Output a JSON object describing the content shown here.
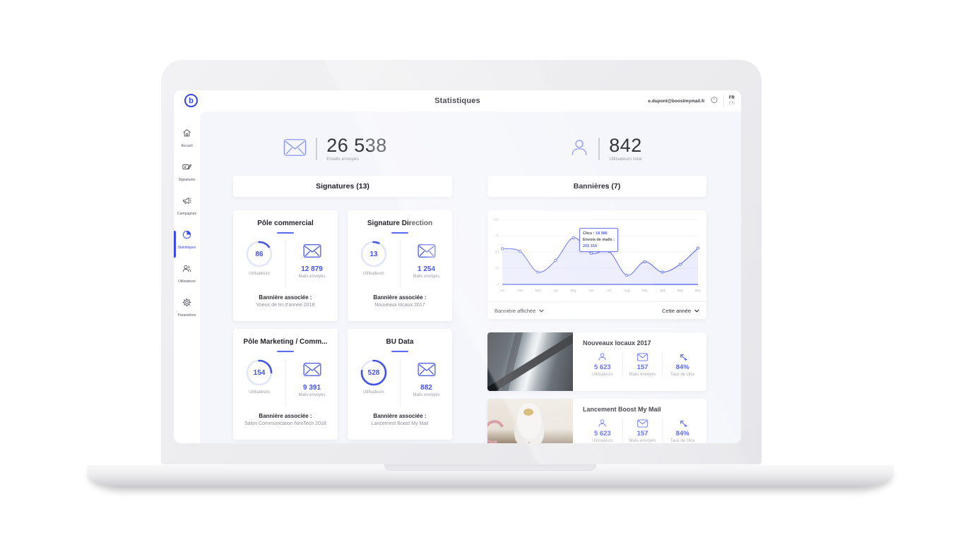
{
  "app_header": {
    "logo_letter": "b",
    "title": "Statistiques",
    "user_email": "e.dupont@boostmymail.fr",
    "languages": {
      "primary": "FR",
      "secondary": "EN"
    }
  },
  "sidebar": {
    "items": [
      {
        "label": "Accueil"
      },
      {
        "label": "Signatures"
      },
      {
        "label": "Campagnes"
      },
      {
        "label": "Statistiques",
        "active": true
      },
      {
        "label": "Utilisateurs"
      },
      {
        "label": "Paramètres"
      }
    ]
  },
  "overview": {
    "emails": {
      "value": "26 538",
      "label": "Emails envoyés"
    },
    "users": {
      "value": "842",
      "label": "Utilisateurs total"
    }
  },
  "signatures": {
    "header": "Signatures (13)",
    "cards": [
      {
        "title": "Pôle commercial",
        "users": "86",
        "users_label": "Utilisateurs",
        "mails": "12 879",
        "mails_label": "Mails envoyés",
        "banner_label": "Bannière associée :",
        "banner": "Voeux de fin d'année 2018",
        "ring_dash": "15 85"
      },
      {
        "title": "Signature Direction",
        "users": "13",
        "users_label": "Utilisateurs",
        "mails": "1 254",
        "mails_label": "Mails envoyés",
        "banner_label": "Bannière associée :",
        "banner": "Nouveaux locaux 2017",
        "ring_dash": "7 93"
      },
      {
        "title": "Pôle Marketing / Comm...",
        "users": "154",
        "users_label": "Utilisateurs",
        "mails": "9 391",
        "mails_label": "Mails envoyés",
        "banner_label": "Bannière associée :",
        "banner": "Salon Communication NeoTech 2018",
        "ring_dash": "25 75"
      },
      {
        "title": "BU Data",
        "users": "528",
        "users_label": "Utilisateurs",
        "mails": "882",
        "mails_label": "Mails envoyés",
        "banner_label": "Bannière associée :",
        "banner": "Lancement Boost My Mail",
        "ring_dash": "78 22"
      }
    ]
  },
  "banners": {
    "header": "Bannières (7)",
    "tooltip": {
      "clicks_label": "Clics :",
      "clicks_value": "18 986",
      "mails_label": "Envois de mails :",
      "mails_value": "202 154"
    },
    "filter_left": "Bannière affichée",
    "filter_right": "Cette année",
    "cards": [
      {
        "title": "Nouveaux locaux 2017",
        "users": "5 623",
        "users_label": "Utilisateurs",
        "mails": "157",
        "mails_label": "Mails envoyés",
        "clicks": "84%",
        "clicks_label": "Taux de clics"
      },
      {
        "title": "Lancement Boost My Mail",
        "users": "5 623",
        "users_label": "Utilisateurs",
        "mails": "157",
        "mails_label": "Mails envoyés",
        "clicks": "84%",
        "clicks_label": "Taux de clics"
      }
    ]
  },
  "chart_data": {
    "type": "line",
    "x": [
      "Jan",
      "Feb",
      "Mar",
      "Apr",
      "May",
      "Jun",
      "Jul",
      "Aug",
      "Sep",
      "Oct",
      "Nov",
      "Dec"
    ],
    "values": [
      55,
      51,
      19,
      37,
      72,
      48,
      51,
      14,
      35,
      19,
      31,
      56
    ],
    "ylim": [
      0,
      100
    ],
    "yticks": [
      0,
      25,
      50,
      75,
      100
    ],
    "grid": true,
    "area_fill": true,
    "line_color": "#5b6af0",
    "title": "",
    "xlabel": "",
    "ylabel": ""
  },
  "colors": {
    "accent": "#3b4ae8",
    "chart_line": "#5b6af0",
    "bg_light": "#f5f6fb",
    "text_muted": "#9b9ba3"
  }
}
